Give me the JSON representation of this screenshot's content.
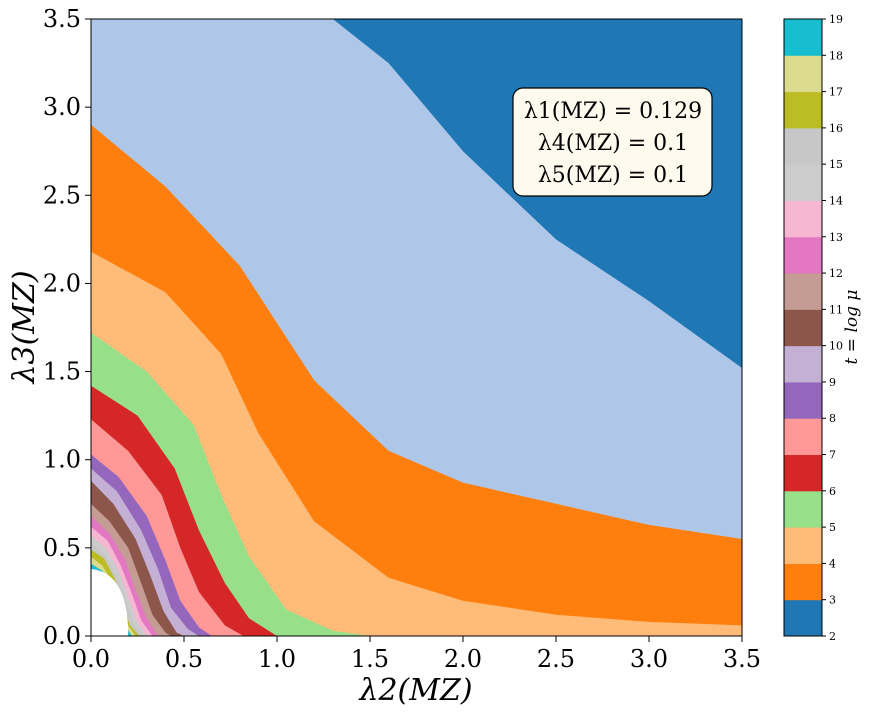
{
  "chart_data": {
    "type": "heatmap",
    "xlabel": "λ2(MZ)",
    "ylabel": "λ3(MZ)",
    "xlim": [
      0.0,
      3.5
    ],
    "ylim": [
      0.0,
      3.5
    ],
    "x_ticks": [
      "0.0",
      "0.5",
      "1.0",
      "1.5",
      "2.0",
      "2.5",
      "3.0",
      "3.5"
    ],
    "y_ticks": [
      "0.0",
      "0.5",
      "1.0",
      "1.5",
      "2.0",
      "2.5",
      "3.0",
      "3.5"
    ],
    "colorbar": {
      "label": "t = log μ",
      "ticks": [
        "2",
        "3",
        "4",
        "5",
        "6",
        "7",
        "8",
        "9",
        "10",
        "11",
        "12",
        "13",
        "14",
        "15",
        "16",
        "17",
        "18",
        "19"
      ],
      "range": [
        2,
        19
      ],
      "colors": [
        "#1f77b4",
        "#aec7e8",
        "#ff7f0e",
        "#ffbb78",
        "#98df8a",
        "#d62728",
        "#ff9896",
        "#9467bd",
        "#c5b0d5",
        "#8c564b",
        "#c49c94",
        "#e377c2",
        "#f7b6d2",
        "#cccccc",
        "#c7c7c7",
        "#bcbd22",
        "#dbdb8d",
        "#17becf",
        "#9edae5"
      ]
    },
    "annotation_lines": [
      "λ1(MZ) = 0.129",
      "λ4(MZ) = 0.1",
      "λ5(MZ) = 0.1"
    ],
    "bands": [
      {
        "t": 3,
        "boundary": [
          [
            1.3,
            3.5
          ],
          [
            1.6,
            3.25
          ],
          [
            2.0,
            2.75
          ],
          [
            2.5,
            2.25
          ],
          [
            3.0,
            1.9
          ],
          [
            3.5,
            1.52
          ]
        ]
      },
      {
        "t": 4,
        "boundary": [
          [
            0.0,
            2.9
          ],
          [
            0.4,
            2.55
          ],
          [
            0.8,
            2.1
          ],
          [
            1.2,
            1.45
          ],
          [
            1.6,
            1.05
          ],
          [
            2.0,
            0.87
          ],
          [
            2.5,
            0.75
          ],
          [
            3.0,
            0.63
          ],
          [
            3.5,
            0.55
          ]
        ]
      },
      {
        "t": 5,
        "boundary": [
          [
            0.0,
            2.18
          ],
          [
            0.4,
            1.95
          ],
          [
            0.7,
            1.6
          ],
          [
            0.9,
            1.15
          ],
          [
            1.2,
            0.65
          ],
          [
            1.6,
            0.33
          ],
          [
            2.0,
            0.2
          ],
          [
            2.5,
            0.12
          ],
          [
            3.0,
            0.08
          ],
          [
            3.5,
            0.06
          ]
        ]
      },
      {
        "t": 6,
        "boundary": [
          [
            0.0,
            1.72
          ],
          [
            0.3,
            1.5
          ],
          [
            0.55,
            1.2
          ],
          [
            0.7,
            0.8
          ],
          [
            0.85,
            0.45
          ],
          [
            1.05,
            0.15
          ],
          [
            1.3,
            0.03
          ],
          [
            1.5,
            0.0
          ]
        ]
      },
      {
        "t": 7,
        "boundary": [
          [
            0.0,
            1.42
          ],
          [
            0.25,
            1.25
          ],
          [
            0.45,
            0.95
          ],
          [
            0.58,
            0.6
          ],
          [
            0.72,
            0.3
          ],
          [
            0.85,
            0.1
          ],
          [
            1.0,
            0.0
          ]
        ]
      },
      {
        "t": 8,
        "boundary": [
          [
            0.0,
            1.23
          ],
          [
            0.2,
            1.05
          ],
          [
            0.38,
            0.8
          ],
          [
            0.48,
            0.5
          ],
          [
            0.58,
            0.25
          ],
          [
            0.72,
            0.06
          ],
          [
            0.82,
            0.0
          ]
        ]
      },
      {
        "t": 9,
        "boundary": [
          [
            0.0,
            1.03
          ],
          [
            0.15,
            0.9
          ],
          [
            0.3,
            0.68
          ],
          [
            0.4,
            0.43
          ],
          [
            0.48,
            0.2
          ],
          [
            0.58,
            0.05
          ],
          [
            0.65,
            0.0
          ]
        ]
      },
      {
        "t": 10,
        "boundary": [
          [
            0.0,
            0.95
          ],
          [
            0.14,
            0.82
          ],
          [
            0.27,
            0.6
          ],
          [
            0.36,
            0.38
          ],
          [
            0.43,
            0.16
          ],
          [
            0.52,
            0.04
          ],
          [
            0.58,
            0.0
          ]
        ]
      },
      {
        "t": 11,
        "boundary": [
          [
            0.0,
            0.88
          ],
          [
            0.12,
            0.75
          ],
          [
            0.24,
            0.55
          ],
          [
            0.32,
            0.34
          ],
          [
            0.39,
            0.14
          ],
          [
            0.46,
            0.02
          ],
          [
            0.5,
            0.0
          ]
        ]
      },
      {
        "t": 12,
        "boundary": [
          [
            0.0,
            0.75
          ],
          [
            0.1,
            0.65
          ],
          [
            0.2,
            0.5
          ],
          [
            0.27,
            0.3
          ],
          [
            0.33,
            0.12
          ],
          [
            0.4,
            0.02
          ],
          [
            0.43,
            0.0
          ]
        ]
      },
      {
        "t": 13,
        "boundary": [
          [
            0.0,
            0.68
          ],
          [
            0.1,
            0.58
          ],
          [
            0.18,
            0.44
          ],
          [
            0.24,
            0.26
          ],
          [
            0.3,
            0.1
          ],
          [
            0.36,
            0.0
          ]
        ]
      },
      {
        "t": 14,
        "boundary": [
          [
            0.0,
            0.62
          ],
          [
            0.09,
            0.54
          ],
          [
            0.16,
            0.4
          ],
          [
            0.22,
            0.24
          ],
          [
            0.27,
            0.09
          ],
          [
            0.33,
            0.0
          ]
        ]
      },
      {
        "t": 15,
        "boundary": [
          [
            0.0,
            0.57
          ],
          [
            0.08,
            0.5
          ],
          [
            0.15,
            0.37
          ],
          [
            0.2,
            0.22
          ],
          [
            0.25,
            0.08
          ],
          [
            0.3,
            0.0
          ]
        ]
      },
      {
        "t": 16,
        "boundary": [
          [
            0.0,
            0.53
          ],
          [
            0.07,
            0.47
          ],
          [
            0.14,
            0.34
          ],
          [
            0.19,
            0.2
          ],
          [
            0.23,
            0.07
          ],
          [
            0.28,
            0.0
          ]
        ]
      },
      {
        "t": 17,
        "boundary": [
          [
            0.0,
            0.49
          ],
          [
            0.07,
            0.44
          ],
          [
            0.13,
            0.32
          ],
          [
            0.17,
            0.18
          ],
          [
            0.21,
            0.06
          ],
          [
            0.26,
            0.0
          ]
        ]
      },
      {
        "t": 18,
        "boundary": [
          [
            0.0,
            0.45
          ],
          [
            0.06,
            0.4
          ],
          [
            0.12,
            0.3
          ],
          [
            0.16,
            0.17
          ],
          [
            0.2,
            0.06
          ],
          [
            0.24,
            0.0
          ]
        ]
      },
      {
        "t": 19,
        "boundary": [
          [
            0.0,
            0.41
          ],
          [
            0.06,
            0.37
          ],
          [
            0.11,
            0.28
          ],
          [
            0.15,
            0.16
          ],
          [
            0.19,
            0.05
          ],
          [
            0.22,
            0.0
          ]
        ]
      }
    ]
  }
}
